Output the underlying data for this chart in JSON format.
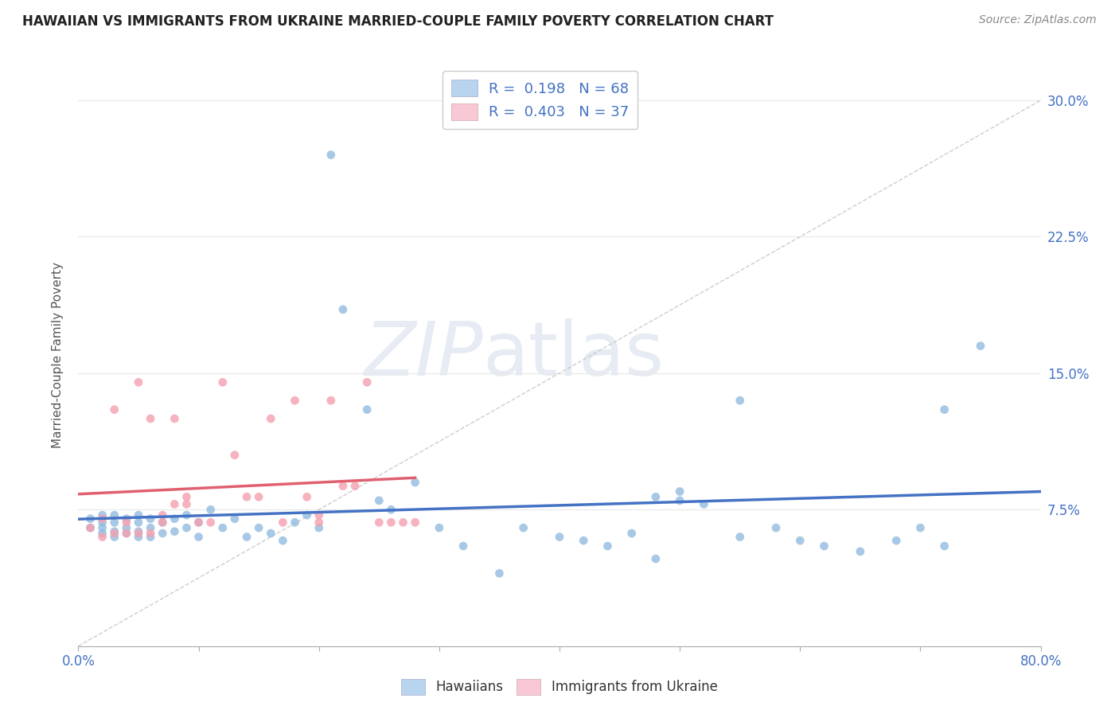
{
  "title": "HAWAIIAN VS IMMIGRANTS FROM UKRAINE MARRIED-COUPLE FAMILY POVERTY CORRELATION CHART",
  "source": "Source: ZipAtlas.com",
  "ylabel": "Married-Couple Family Poverty",
  "ytick_vals": [
    0.075,
    0.15,
    0.225,
    0.3
  ],
  "ytick_labels": [
    "7.5%",
    "15.0%",
    "22.5%",
    "30.0%"
  ],
  "xlim": [
    0.0,
    0.8
  ],
  "ylim": [
    0.0,
    0.32
  ],
  "hawaiians_color": "#92bce0",
  "ukraine_color": "#f4a0b0",
  "hawaii_line_color": "#4472c4",
  "ukraine_line_color": "#e06070",
  "background_color": "#ffffff",
  "grid_color": "#e8e8e8",
  "hawaii_N": 68,
  "ukraine_N": 37,
  "hawaii_R": 0.198,
  "ukraine_R": 0.403,
  "hawaii_x": [
    0.01,
    0.01,
    0.02,
    0.02,
    0.02,
    0.02,
    0.03,
    0.03,
    0.03,
    0.03,
    0.04,
    0.04,
    0.04,
    0.05,
    0.05,
    0.05,
    0.05,
    0.06,
    0.06,
    0.06,
    0.07,
    0.07,
    0.08,
    0.08,
    0.09,
    0.09,
    0.1,
    0.1,
    0.11,
    0.12,
    0.13,
    0.14,
    0.15,
    0.16,
    0.17,
    0.18,
    0.19,
    0.2,
    0.21,
    0.22,
    0.24,
    0.25,
    0.26,
    0.28,
    0.3,
    0.32,
    0.35,
    0.37,
    0.4,
    0.42,
    0.44,
    0.46,
    0.48,
    0.5,
    0.52,
    0.55,
    0.58,
    0.6,
    0.62,
    0.65,
    0.68,
    0.7,
    0.72,
    0.75,
    0.48,
    0.5,
    0.55,
    0.72
  ],
  "hawaii_y": [
    0.065,
    0.07,
    0.062,
    0.065,
    0.068,
    0.072,
    0.06,
    0.063,
    0.068,
    0.072,
    0.062,
    0.065,
    0.07,
    0.06,
    0.063,
    0.068,
    0.072,
    0.06,
    0.065,
    0.07,
    0.062,
    0.068,
    0.063,
    0.07,
    0.065,
    0.072,
    0.06,
    0.068,
    0.075,
    0.065,
    0.07,
    0.06,
    0.065,
    0.062,
    0.058,
    0.068,
    0.072,
    0.065,
    0.27,
    0.185,
    0.13,
    0.08,
    0.075,
    0.09,
    0.065,
    0.055,
    0.04,
    0.065,
    0.06,
    0.058,
    0.055,
    0.062,
    0.048,
    0.08,
    0.078,
    0.06,
    0.065,
    0.058,
    0.055,
    0.052,
    0.058,
    0.065,
    0.055,
    0.165,
    0.082,
    0.085,
    0.135,
    0.13
  ],
  "ukraine_x": [
    0.01,
    0.02,
    0.02,
    0.03,
    0.03,
    0.04,
    0.04,
    0.05,
    0.05,
    0.06,
    0.06,
    0.07,
    0.07,
    0.08,
    0.08,
    0.09,
    0.09,
    0.1,
    0.11,
    0.12,
    0.13,
    0.14,
    0.15,
    0.16,
    0.17,
    0.18,
    0.19,
    0.2,
    0.2,
    0.21,
    0.22,
    0.23,
    0.24,
    0.25,
    0.26,
    0.27,
    0.28
  ],
  "ukraine_y": [
    0.065,
    0.07,
    0.06,
    0.13,
    0.062,
    0.068,
    0.062,
    0.145,
    0.062,
    0.125,
    0.062,
    0.068,
    0.072,
    0.125,
    0.078,
    0.078,
    0.082,
    0.068,
    0.068,
    0.145,
    0.105,
    0.082,
    0.082,
    0.125,
    0.068,
    0.135,
    0.082,
    0.068,
    0.072,
    0.135,
    0.088,
    0.088,
    0.145,
    0.068,
    0.068,
    0.068,
    0.068
  ]
}
